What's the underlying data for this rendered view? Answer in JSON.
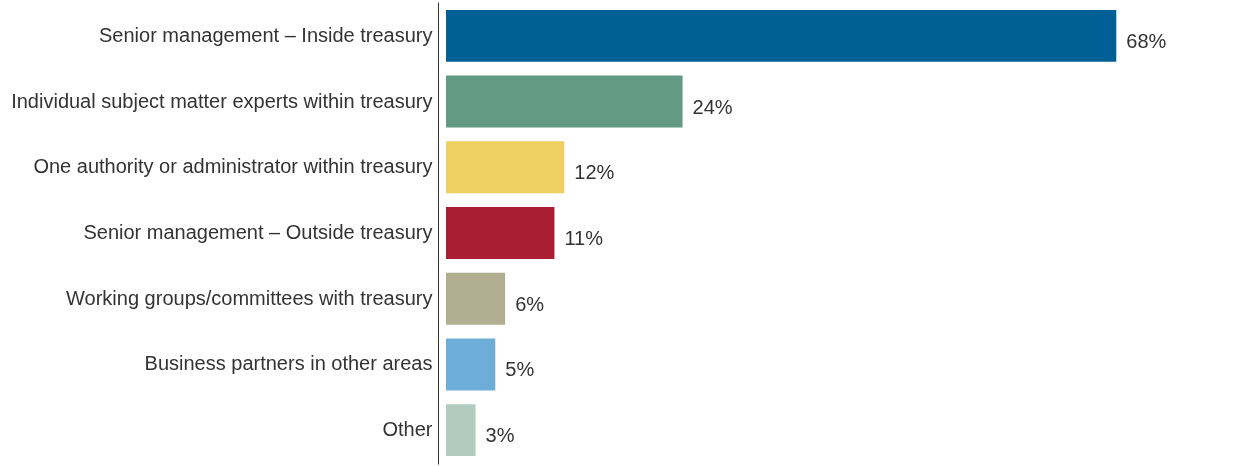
{
  "chart_data": {
    "type": "bar",
    "orientation": "horizontal",
    "categories": [
      "Senior management  – Inside treasury",
      "Individual subject matter experts within treasury",
      "One authority or administrator within treasury",
      "Senior management – Outside treasury",
      "Working groups/committees with treasury",
      "Business partners in other areas",
      "Other"
    ],
    "values": [
      68,
      24,
      12,
      11,
      6,
      5,
      3
    ],
    "colors": [
      "#005f94",
      "#639a85",
      "#edcf62",
      "#a91e32",
      "#b2ae92",
      "#6fadd9",
      "#b1cbc0"
    ],
    "value_labels": [
      "68%",
      "24%",
      "12%",
      "11%",
      "6%",
      "5%",
      "3%"
    ],
    "legend": false
  }
}
